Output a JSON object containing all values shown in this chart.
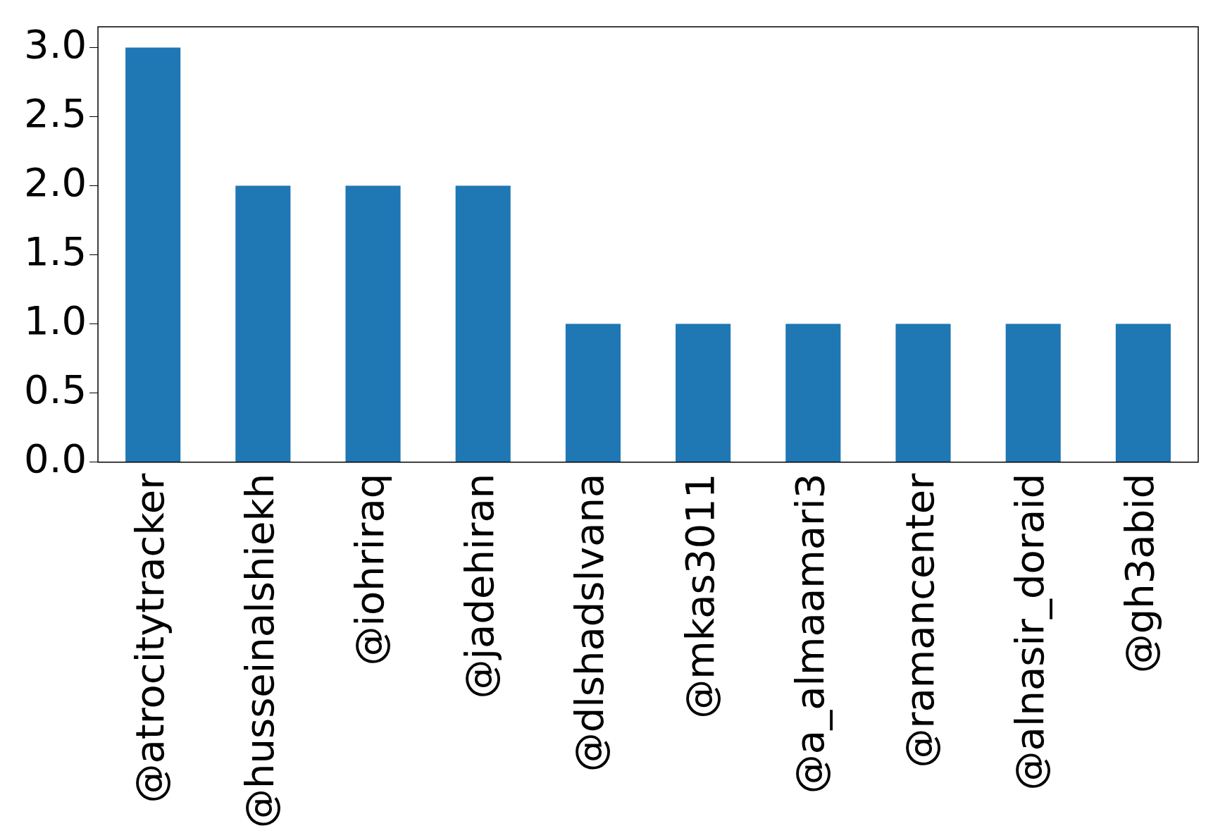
{
  "chart_data": {
    "type": "bar",
    "categories": [
      "@atrocitytracker",
      "@husseinalshiekh",
      "@iohriraq",
      "@jadehiran",
      "@dlshadslvana",
      "@mkas3011",
      "@a_almaamari3",
      "@ramancenter",
      "@alnasir_doraid",
      "@gh3abid"
    ],
    "values": [
      3,
      2,
      2,
      2,
      1,
      1,
      1,
      1,
      1,
      1
    ],
    "color": "#1f77b4",
    "ylim": [
      0,
      3.15
    ],
    "yticks": [
      {
        "value": 0,
        "label": "0.0"
      },
      {
        "value": 0.5,
        "label": "0.5"
      },
      {
        "value": 1,
        "label": "1.0"
      },
      {
        "value": 1.5,
        "label": "1.5"
      },
      {
        "value": 2,
        "label": "2.0"
      },
      {
        "value": 2.5,
        "label": "2.5"
      },
      {
        "value": 3,
        "label": "3.0"
      }
    ],
    "grid": false,
    "legend": false
  }
}
